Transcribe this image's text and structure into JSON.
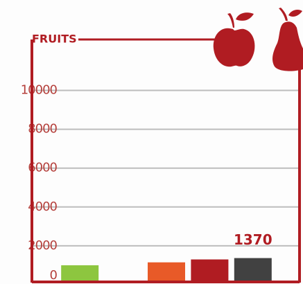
{
  "chart_data": {
    "type": "bar",
    "title": "FRUITS",
    "categories": [
      null,
      null,
      null,
      null,
      null
    ],
    "values": [
      1000,
      null,
      1150,
      1300,
      1370
    ],
    "value_labels": [
      null,
      null,
      null,
      null,
      "1370"
    ],
    "colors": [
      "#8dc63f",
      null,
      "#e85a28",
      "#b01c22",
      "#414141"
    ],
    "ylim": [
      0,
      10000
    ],
    "yticks": [
      0,
      2000,
      4000,
      6000,
      8000,
      10000
    ],
    "grid": true
  }
}
